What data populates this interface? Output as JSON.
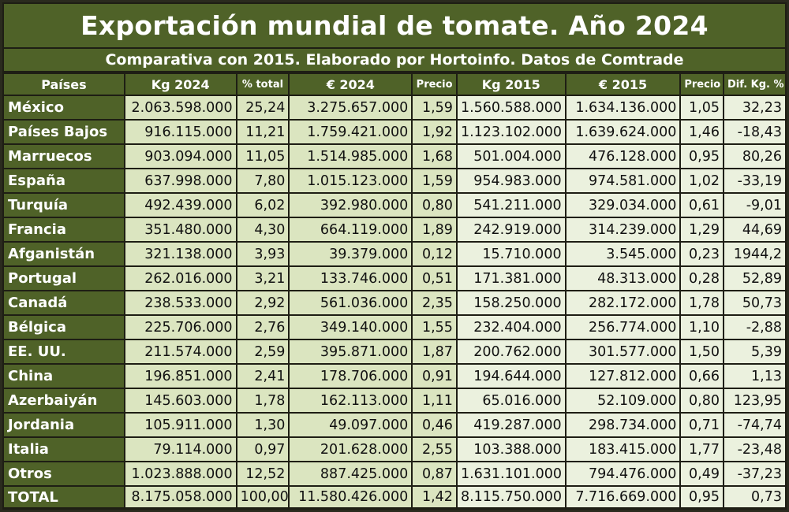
{
  "title": "Exportación mundial de tomate. Año 2024",
  "subtitle": "Comparativa con 2015. Elaborado por Hortoinfo. Datos de Comtrade",
  "colors": {
    "header_green": "#4f6228",
    "cell_green": "#dbe5c0",
    "cell_light": "#ebf1de",
    "frame_dark": "#1e1e14"
  },
  "columns": [
    "Países",
    "Kg 2024",
    "% total",
    "€ 2024",
    "Precio",
    "Kg 2015",
    "€ 2015",
    "Precio",
    "Dif. Kg. %"
  ],
  "rows": [
    {
      "pais": "México",
      "kg2024": "2.063.598.000",
      "pct": "25,24",
      "eur2024": "3.275.657.000",
      "precio2024": "1,59",
      "kg2015": "1.560.588.000",
      "eur2015": "1.634.136.000",
      "precio2015": "1,05",
      "dif": "32,23"
    },
    {
      "pais": "Países Bajos",
      "kg2024": "916.115.000",
      "pct": "11,21",
      "eur2024": "1.759.421.000",
      "precio2024": "1,92",
      "kg2015": "1.123.102.000",
      "eur2015": "1.639.624.000",
      "precio2015": "1,46",
      "dif": "-18,43"
    },
    {
      "pais": "Marruecos",
      "kg2024": "903.094.000",
      "pct": "11,05",
      "eur2024": "1.514.985.000",
      "precio2024": "1,68",
      "kg2015": "501.004.000",
      "eur2015": "476.128.000",
      "precio2015": "0,95",
      "dif": "80,26"
    },
    {
      "pais": "España",
      "kg2024": "637.998.000",
      "pct": "7,80",
      "eur2024": "1.015.123.000",
      "precio2024": "1,59",
      "kg2015": "954.983.000",
      "eur2015": "974.581.000",
      "precio2015": "1,02",
      "dif": "-33,19"
    },
    {
      "pais": "Turquía",
      "kg2024": "492.439.000",
      "pct": "6,02",
      "eur2024": "392.980.000",
      "precio2024": "0,80",
      "kg2015": "541.211.000",
      "eur2015": "329.034.000",
      "precio2015": "0,61",
      "dif": "-9,01"
    },
    {
      "pais": "Francia",
      "kg2024": "351.480.000",
      "pct": "4,30",
      "eur2024": "664.119.000",
      "precio2024": "1,89",
      "kg2015": "242.919.000",
      "eur2015": "314.239.000",
      "precio2015": "1,29",
      "dif": "44,69"
    },
    {
      "pais": "Afganistán",
      "kg2024": "321.138.000",
      "pct": "3,93",
      "eur2024": "39.379.000",
      "precio2024": "0,12",
      "kg2015": "15.710.000",
      "eur2015": "3.545.000",
      "precio2015": "0,23",
      "dif": "1944,2"
    },
    {
      "pais": "Portugal",
      "kg2024": "262.016.000",
      "pct": "3,21",
      "eur2024": "133.746.000",
      "precio2024": "0,51",
      "kg2015": "171.381.000",
      "eur2015": "48.313.000",
      "precio2015": "0,28",
      "dif": "52,89"
    },
    {
      "pais": "Canadá",
      "kg2024": "238.533.000",
      "pct": "2,92",
      "eur2024": "561.036.000",
      "precio2024": "2,35",
      "kg2015": "158.250.000",
      "eur2015": "282.172.000",
      "precio2015": "1,78",
      "dif": "50,73"
    },
    {
      "pais": "Bélgica",
      "kg2024": "225.706.000",
      "pct": "2,76",
      "eur2024": "349.140.000",
      "precio2024": "1,55",
      "kg2015": "232.404.000",
      "eur2015": "256.774.000",
      "precio2015": "1,10",
      "dif": "-2,88"
    },
    {
      "pais": "EE. UU.",
      "kg2024": "211.574.000",
      "pct": "2,59",
      "eur2024": "395.871.000",
      "precio2024": "1,87",
      "kg2015": "200.762.000",
      "eur2015": "301.577.000",
      "precio2015": "1,50",
      "dif": "5,39"
    },
    {
      "pais": "China",
      "kg2024": "196.851.000",
      "pct": "2,41",
      "eur2024": "178.706.000",
      "precio2024": "0,91",
      "kg2015": "194.644.000",
      "eur2015": "127.812.000",
      "precio2015": "0,66",
      "dif": "1,13"
    },
    {
      "pais": "Azerbaiyán",
      "kg2024": "145.603.000",
      "pct": "1,78",
      "eur2024": "162.113.000",
      "precio2024": "1,11",
      "kg2015": "65.016.000",
      "eur2015": "52.109.000",
      "precio2015": "0,80",
      "dif": "123,95"
    },
    {
      "pais": "Jordania",
      "kg2024": "105.911.000",
      "pct": "1,30",
      "eur2024": "49.097.000",
      "precio2024": "0,46",
      "kg2015": "419.287.000",
      "eur2015": "298.734.000",
      "precio2015": "0,71",
      "dif": "-74,74"
    },
    {
      "pais": "Italia",
      "kg2024": "79.114.000",
      "pct": "0,97",
      "eur2024": "201.628.000",
      "precio2024": "2,55",
      "kg2015": "103.388.000",
      "eur2015": "183.415.000",
      "precio2015": "1,77",
      "dif": "-23,48"
    },
    {
      "pais": "Otros",
      "kg2024": "1.023.888.000",
      "pct": "12,52",
      "eur2024": "887.425.000",
      "precio2024": "0,87",
      "kg2015": "1.631.101.000",
      "eur2015": "794.476.000",
      "precio2015": "0,49",
      "dif": "-37,23"
    },
    {
      "pais": "TOTAL",
      "kg2024": "8.175.058.000",
      "pct": "100,00",
      "eur2024": "11.580.426.000",
      "precio2024": "1,42",
      "kg2015": "8.115.750.000",
      "eur2015": "7.716.669.000",
      "precio2015": "0,95",
      "dif": "0,73"
    }
  ]
}
